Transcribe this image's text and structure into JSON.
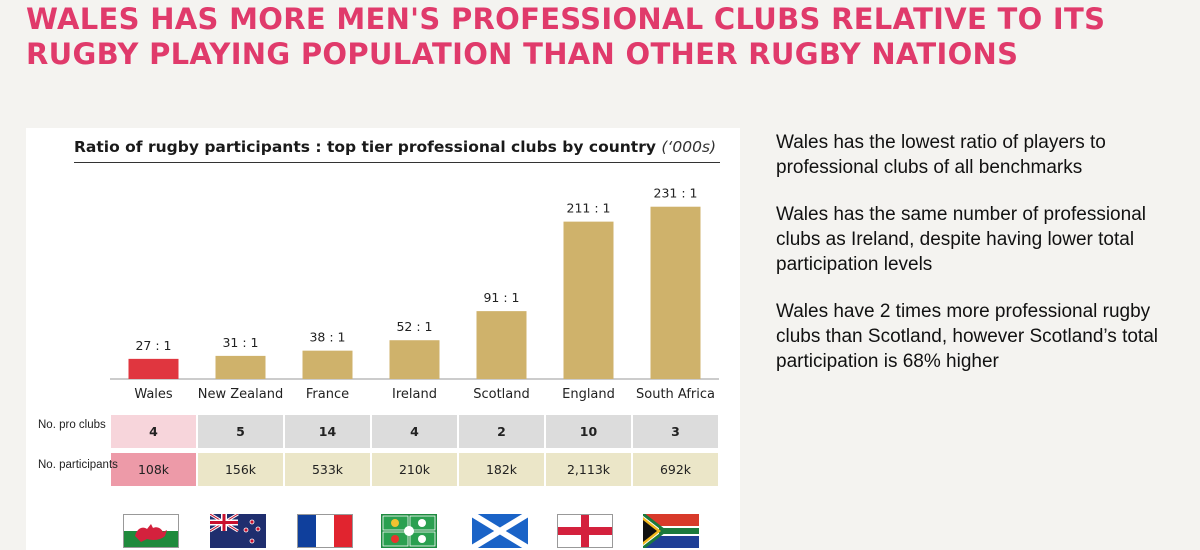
{
  "headline": "WALES HAS MORE MEN'S PROFESSIONAL CLUBS RELATIVE TO ITS RUGBY PLAYING POPULATION THAN OTHER RUGBY NATIONS",
  "chart_data": {
    "type": "bar",
    "title": "Ratio of rugby participants : top tier professional clubs by country",
    "title_unit": "(‘000s)",
    "categories": [
      "Wales",
      "New Zealand",
      "France",
      "Ireland",
      "Scotland",
      "England",
      "South Africa"
    ],
    "values": [
      27,
      31,
      38,
      52,
      91,
      211,
      231
    ],
    "data_labels": [
      "27 : 1",
      "31 : 1",
      "38 : 1",
      "52 : 1",
      "91 : 1",
      "211 : 1",
      "231 : 1"
    ],
    "highlight_index": 0,
    "colors": {
      "bar": "#cfb26b",
      "highlight": "#e0363f",
      "pro_cell": "#dcdcdc",
      "pro_highlight": "#f7d5db",
      "part_cell": "#ebe6c8",
      "part_highlight": "#ed9aa8"
    },
    "ylim": [
      0,
      240
    ],
    "grid": false,
    "legend": "none"
  },
  "table": {
    "pro_clubs_label": "No. pro clubs",
    "participants_label": "No. participants",
    "pro_clubs": [
      "4",
      "5",
      "14",
      "4",
      "2",
      "10",
      "3"
    ],
    "participants": [
      "108k",
      "156k",
      "533k",
      "210k",
      "182k",
      "2,113k",
      "692k"
    ]
  },
  "flags": [
    "wales-flag",
    "new-zealand-flag",
    "france-flag",
    "ireland-flag",
    "scotland-flag",
    "england-flag",
    "south-africa-flag"
  ],
  "side_text": [
    "Wales has the lowest ratio of players to professional clubs of all benchmarks",
    "Wales has the same number of professional clubs as Ireland, despite having lower total participation levels",
    "Wales have 2 times more professional rugby clubs than Scotland, however Scotland’s total participation is 68% higher"
  ]
}
